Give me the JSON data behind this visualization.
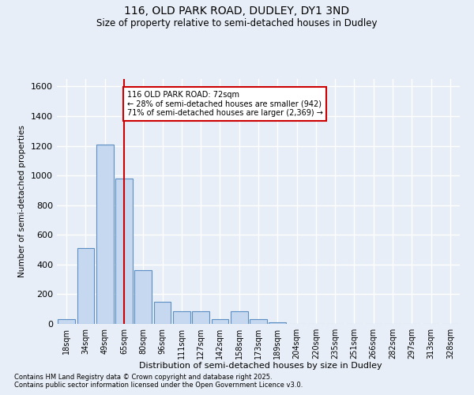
{
  "title_line1": "116, OLD PARK ROAD, DUDLEY, DY1 3ND",
  "title_line2": "Size of property relative to semi-detached houses in Dudley",
  "xlabel": "Distribution of semi-detached houses by size in Dudley",
  "ylabel": "Number of semi-detached properties",
  "footnote1": "Contains HM Land Registry data © Crown copyright and database right 2025.",
  "footnote2": "Contains public sector information licensed under the Open Government Licence v3.0.",
  "annotation_line1": "116 OLD PARK ROAD: 72sqm",
  "annotation_line2": "← 28% of semi-detached houses are smaller (942)",
  "annotation_line3": "71% of semi-detached houses are larger (2,369) →",
  "bar_color": "#c5d8f0",
  "bar_edge_color": "#5b8fc4",
  "background_color": "#e8eef7",
  "grid_color": "#ffffff",
  "red_line_color": "#cc0000",
  "annotation_box_edge": "#cc0000",
  "categories": [
    "18sqm",
    "34sqm",
    "49sqm",
    "65sqm",
    "80sqm",
    "96sqm",
    "111sqm",
    "127sqm",
    "142sqm",
    "158sqm",
    "173sqm",
    "189sqm",
    "204sqm",
    "220sqm",
    "235sqm",
    "251sqm",
    "266sqm",
    "282sqm",
    "297sqm",
    "313sqm",
    "328sqm"
  ],
  "values": [
    30,
    510,
    1210,
    980,
    360,
    150,
    85,
    85,
    30,
    85,
    30,
    10,
    0,
    0,
    0,
    0,
    0,
    0,
    0,
    0,
    0
  ],
  "red_line_x": 3.0,
  "ylim": [
    0,
    1650
  ],
  "yticks": [
    0,
    200,
    400,
    600,
    800,
    1000,
    1200,
    1400,
    1600
  ]
}
